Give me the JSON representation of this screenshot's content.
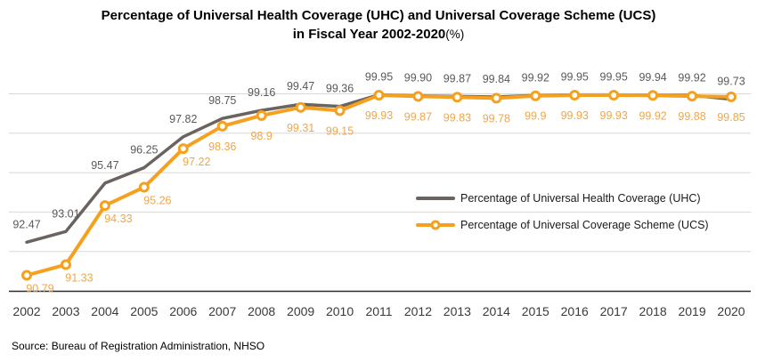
{
  "title": {
    "line1": "Percentage of Universal Health Coverage (UHC) and Universal Coverage Scheme (UCS)",
    "line2_bold": "in Fiscal Year 2002-2020",
    "line2_suffix": "(%)"
  },
  "source": "Source: Bureau of Registration Administration, NHSO",
  "colors": {
    "uhc_line": "#6A6360",
    "ucs_line": "#F5A11F",
    "uhc_label": "#595959",
    "ucs_label": "#F0A64A",
    "gridline": "#DBD8D4",
    "axis": "#2B2B2B",
    "tick_label": "#3A3A3A"
  },
  "chart_data": {
    "type": "line",
    "title": "Percentage of Universal Health Coverage (UHC) and Universal Coverage Scheme (UCS) in Fiscal Year 2002-2020 (%)",
    "x": [
      2002,
      2003,
      2004,
      2005,
      2006,
      2007,
      2008,
      2009,
      2010,
      2011,
      2012,
      2013,
      2014,
      2015,
      2016,
      2017,
      2018,
      2019,
      2020
    ],
    "xlabel": "",
    "ylabel": "",
    "ylim": [
      90,
      100
    ],
    "gridline_values": [
      92,
      94,
      96,
      98,
      100
    ],
    "grid": true,
    "y_axis_labels_visible": false,
    "data_labels": true,
    "legend_position": "center-right",
    "series": [
      {
        "name": "Percentage of Universal Health Coverage (UHC)",
        "color": "#6A6360",
        "marker": "none",
        "values": [
          92.47,
          93.01,
          95.47,
          96.25,
          97.82,
          98.75,
          99.16,
          99.47,
          99.36,
          99.95,
          99.9,
          99.87,
          99.84,
          99.92,
          99.95,
          99.95,
          99.94,
          99.92,
          99.73
        ],
        "labels": [
          "92.47",
          "93.01",
          "95.47",
          "96.25",
          "97.82",
          "98.75",
          "99.16",
          "99.47",
          "99.36",
          "99.95",
          "99.90",
          "99.87",
          "99.84",
          "99.92",
          "99.95",
          "99.95",
          "99.94",
          "99.92",
          "99.73"
        ]
      },
      {
        "name": "Percentage of Universal Coverage Scheme (UCS)",
        "color": "#F5A11F",
        "marker": "circle",
        "values": [
          90.79,
          91.33,
          94.33,
          95.26,
          97.22,
          98.36,
          98.9,
          99.31,
          99.15,
          99.93,
          99.87,
          99.83,
          99.78,
          99.9,
          99.93,
          99.93,
          99.92,
          99.88,
          99.85
        ],
        "labels": [
          "90.79",
          "91.33",
          "94.33",
          "95.26",
          "97.22",
          "98.36",
          "98.9",
          "99.31",
          "99.15",
          "99.93",
          "99.87",
          "99.83",
          "99.78",
          "99.9",
          "99.93",
          "99.93",
          "99.92",
          "99.88",
          "99.85"
        ]
      }
    ]
  }
}
